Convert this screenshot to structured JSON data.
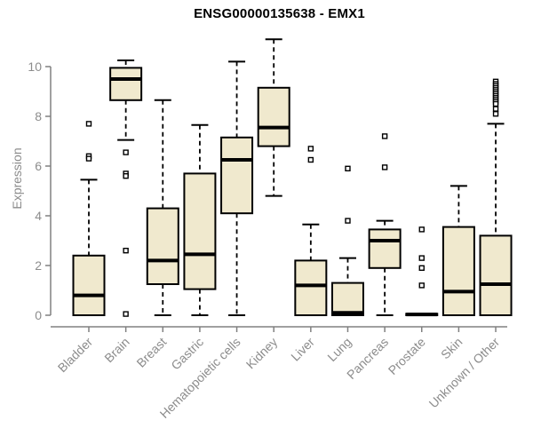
{
  "chart_data": {
    "type": "boxplot",
    "title": "ENSG00000135638 - EMX1",
    "ylabel": "Expression",
    "xlabel": "",
    "yticks": [
      0,
      2,
      4,
      6,
      8,
      10
    ],
    "ylim": [
      0,
      11.3
    ],
    "grid": false,
    "legend": "none",
    "colors": {
      "box_fill": "#F0E9CE",
      "box_border": "#000000",
      "median": "#000000",
      "whisker": "#000000",
      "outlier_fill": "#ffffff",
      "outlier_border": "#000000",
      "axis_line": "#808080",
      "axis_text": "#8c8c8c",
      "title_text": "#000000",
      "background": "#ffffff"
    },
    "categories": [
      "Bladder",
      "Brain",
      "Breast",
      "Gastric",
      "Hematopoietic cells",
      "Kidney",
      "Liver",
      "Lung",
      "Pancreas",
      "Prostate",
      "Skin",
      "Unknown / Other"
    ],
    "series": [
      {
        "category": "Bladder",
        "min": 0,
        "q1": 0,
        "median": 0.8,
        "q3": 2.4,
        "max": 5.45,
        "outliers": [
          7.7,
          6.4,
          6.3
        ]
      },
      {
        "category": "Brain",
        "min": 7.05,
        "q1": 8.65,
        "median": 9.5,
        "q3": 9.95,
        "max": 10.25,
        "outliers": [
          6.55,
          5.7,
          5.6,
          2.6,
          0.05
        ]
      },
      {
        "category": "Breast",
        "min": 0,
        "q1": 1.25,
        "median": 2.2,
        "q3": 4.3,
        "max": 8.65,
        "outliers": []
      },
      {
        "category": "Gastric",
        "min": 0,
        "q1": 1.05,
        "median": 2.45,
        "q3": 5.7,
        "max": 7.65,
        "outliers": []
      },
      {
        "category": "Hematopoietic cells",
        "min": 0,
        "q1": 4.1,
        "median": 6.25,
        "q3": 7.15,
        "max": 10.2,
        "outliers": []
      },
      {
        "category": "Kidney",
        "min": 4.8,
        "q1": 6.8,
        "median": 7.55,
        "q3": 9.15,
        "max": 11.1,
        "outliers": []
      },
      {
        "category": "Liver",
        "min": 0,
        "q1": 0,
        "median": 1.2,
        "q3": 2.2,
        "max": 3.65,
        "outliers": [
          6.7,
          6.25
        ]
      },
      {
        "category": "Lung",
        "min": 0,
        "q1": 0,
        "median": 0.1,
        "q3": 1.3,
        "max": 2.3,
        "outliers": [
          5.9,
          3.8
        ]
      },
      {
        "category": "Pancreas",
        "min": 0,
        "q1": 1.9,
        "median": 3.0,
        "q3": 3.45,
        "max": 3.8,
        "outliers": [
          7.2,
          5.95
        ]
      },
      {
        "category": "Prostate",
        "min": 0,
        "q1": 0,
        "median": 0.03,
        "q3": 0.06,
        "max": 0.06,
        "outliers": [
          3.45,
          2.3,
          1.9,
          1.2
        ]
      },
      {
        "category": "Skin",
        "min": 0,
        "q1": 0,
        "median": 0.95,
        "q3": 3.55,
        "max": 5.2,
        "outliers": []
      },
      {
        "category": "Unknown / Other",
        "min": 0,
        "q1": 0,
        "median": 1.25,
        "q3": 3.2,
        "max": 7.7,
        "outliers": [
          9.4,
          9.3,
          9.22,
          9.14,
          9.06,
          8.98,
          8.9,
          8.82,
          8.74,
          8.66,
          8.58,
          8.5,
          8.3,
          8.1
        ]
      }
    ]
  }
}
